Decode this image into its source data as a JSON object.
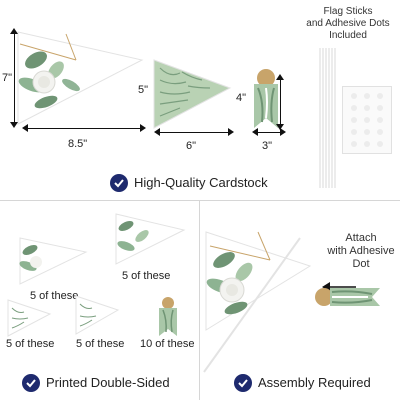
{
  "top": {
    "flag_note": "Flag Sticks\nand Adhesive Dots\nIncluded",
    "dims": {
      "large_height": "7\"",
      "large_width": "8.5\"",
      "medium_height": "5\"",
      "medium_width": "6\"",
      "small_height": "4\"",
      "small_width": "3\""
    },
    "caption": "High-Quality Cardstock"
  },
  "bottom_left": {
    "quantities": [
      "5 of these",
      "5 of these",
      "5 of these",
      "5 of these",
      "10 of these"
    ],
    "caption": "Printed Double-Sided"
  },
  "bottom_right": {
    "attach_note": "Attach\nwith Adhesive\nDot",
    "caption": "Assembly Required"
  },
  "colors": {
    "check_bg": "#1e2a6e",
    "leaf_green": "#7a9e7e",
    "gold": "#c8a46a",
    "dim_line": "#111111"
  },
  "icons": [
    "check-circle-icon",
    "arrow-left-icon"
  ]
}
